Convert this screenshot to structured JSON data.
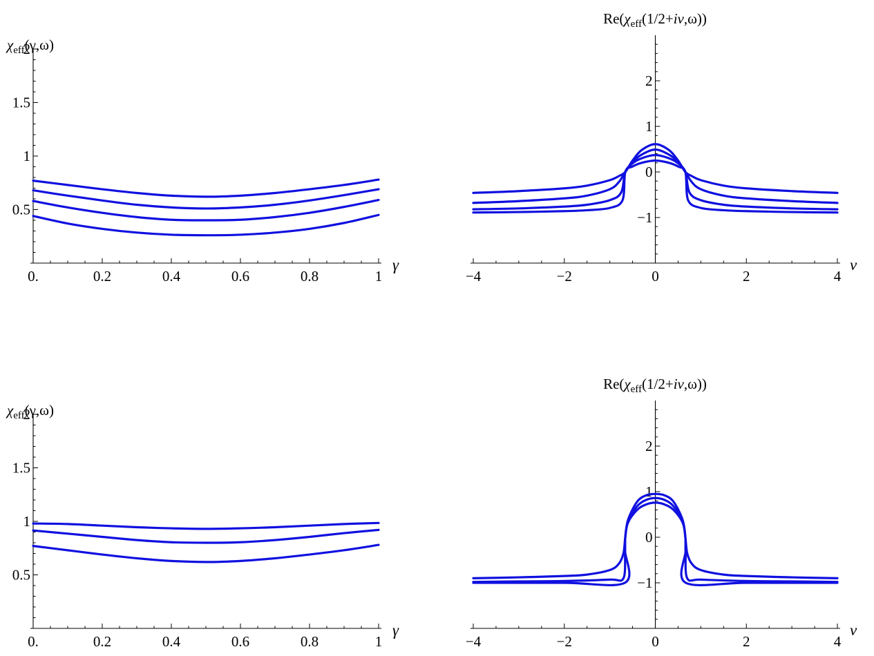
{
  "chart_data": [
    {
      "type": "line",
      "title": "",
      "ylabel_parts": [
        "χ",
        "eff",
        "(γ,ω)"
      ],
      "xlabel": "γ",
      "xlim": [
        0,
        1
      ],
      "ylim": [
        0,
        2
      ],
      "xticks": [
        {
          "v": 0,
          "label": "0."
        },
        {
          "v": 0.2,
          "label": "0.2"
        },
        {
          "v": 0.4,
          "label": "0.4"
        },
        {
          "v": 0.6,
          "label": "0.6"
        },
        {
          "v": 0.8,
          "label": "0.8"
        },
        {
          "v": 1,
          "label": "1"
        }
      ],
      "yticks": [
        {
          "v": 0.5,
          "label": "0.5"
        },
        {
          "v": 1,
          "label": "1"
        },
        {
          "v": 1.5,
          "label": "1.5"
        },
        {
          "v": 2,
          "label": "2"
        }
      ],
      "color": "#1010e0",
      "series": [
        {
          "x": [
            0,
            0.1,
            0.2,
            0.3,
            0.4,
            0.5,
            0.6,
            0.7,
            0.8,
            0.9,
            1
          ],
          "values": [
            0.77,
            0.73,
            0.69,
            0.655,
            0.63,
            0.62,
            0.63,
            0.655,
            0.69,
            0.73,
            0.78
          ]
        },
        {
          "x": [
            0,
            0.1,
            0.2,
            0.3,
            0.4,
            0.5,
            0.6,
            0.7,
            0.8,
            0.9,
            1
          ],
          "values": [
            0.68,
            0.63,
            0.585,
            0.545,
            0.52,
            0.51,
            0.52,
            0.545,
            0.585,
            0.635,
            0.69
          ]
        },
        {
          "x": [
            0,
            0.1,
            0.2,
            0.3,
            0.4,
            0.5,
            0.6,
            0.7,
            0.8,
            0.9,
            1
          ],
          "values": [
            0.58,
            0.52,
            0.47,
            0.43,
            0.405,
            0.4,
            0.405,
            0.43,
            0.47,
            0.525,
            0.59
          ]
        },
        {
          "x": [
            0,
            0.1,
            0.2,
            0.3,
            0.4,
            0.5,
            0.6,
            0.7,
            0.8,
            0.9,
            1
          ],
          "values": [
            0.44,
            0.37,
            0.32,
            0.285,
            0.265,
            0.26,
            0.265,
            0.285,
            0.32,
            0.375,
            0.45
          ]
        }
      ]
    },
    {
      "type": "line",
      "title_parts": [
        "Re(",
        "χ",
        "eff",
        "(1/2+",
        "iν",
        ",ω))"
      ],
      "xlabel": "ν",
      "xlim": [
        -4,
        4
      ],
      "ylim": [
        -2,
        3
      ],
      "xticks": [
        {
          "v": -4,
          "label": "−4"
        },
        {
          "v": -2,
          "label": "−2"
        },
        {
          "v": 0,
          "label": "0"
        },
        {
          "v": 2,
          "label": "2"
        },
        {
          "v": 4,
          "label": "4"
        }
      ],
      "yticks": [
        {
          "v": -1,
          "label": "−1"
        },
        {
          "v": 0,
          "label": "0"
        },
        {
          "v": 1,
          "label": "1"
        },
        {
          "v": 2,
          "label": "2"
        }
      ],
      "color": "#1010e0",
      "series": [
        {
          "x": [
            -4,
            -3,
            -2,
            -1.5,
            -1,
            -0.8,
            -0.66,
            -0.5,
            -0.3,
            0,
            0.3,
            0.5,
            0.66,
            0.8,
            1,
            1.5,
            2,
            3,
            4
          ],
          "values": [
            -0.46,
            -0.42,
            -0.36,
            -0.3,
            -0.18,
            -0.09,
            0,
            0.25,
            0.48,
            0.61,
            0.48,
            0.25,
            0,
            -0.09,
            -0.18,
            -0.3,
            -0.36,
            -0.42,
            -0.46
          ]
        },
        {
          "x": [
            -4,
            -3,
            -2,
            -1.5,
            -1,
            -0.8,
            -0.66,
            -0.5,
            -0.3,
            0,
            0.3,
            0.5,
            0.66,
            0.8,
            1,
            1.5,
            2,
            3,
            4
          ],
          "values": [
            -0.68,
            -0.64,
            -0.58,
            -0.52,
            -0.38,
            -0.22,
            0,
            0.22,
            0.38,
            0.49,
            0.38,
            0.22,
            0,
            -0.22,
            -0.38,
            -0.52,
            -0.58,
            -0.64,
            -0.68
          ]
        },
        {
          "x": [
            -4,
            -3,
            -2,
            -1.5,
            -1,
            -0.75,
            -0.66,
            -0.5,
            -0.3,
            0,
            0.3,
            0.5,
            0.66,
            0.75,
            1,
            1.5,
            2,
            3,
            4
          ],
          "values": [
            -0.82,
            -0.8,
            -0.76,
            -0.72,
            -0.62,
            -0.45,
            0,
            0.19,
            0.3,
            0.37,
            0.3,
            0.19,
            0,
            -0.45,
            -0.62,
            -0.72,
            -0.76,
            -0.8,
            -0.82
          ]
        },
        {
          "x": [
            -4,
            -3,
            -2,
            -1.5,
            -1,
            -0.72,
            -0.66,
            -0.5,
            -0.3,
            0,
            0.3,
            0.5,
            0.66,
            0.72,
            1,
            1.5,
            2,
            3,
            4
          ],
          "values": [
            -0.89,
            -0.88,
            -0.86,
            -0.84,
            -0.79,
            -0.62,
            0,
            0.12,
            0.2,
            0.25,
            0.2,
            0.12,
            0,
            -0.62,
            -0.79,
            -0.84,
            -0.86,
            -0.88,
            -0.89
          ]
        }
      ]
    },
    {
      "type": "line",
      "title": "",
      "ylabel_parts": [
        "χ",
        "eff",
        "(γ,ω)"
      ],
      "xlabel": "γ",
      "xlim": [
        0,
        1
      ],
      "ylim": [
        0,
        2
      ],
      "xticks": [
        {
          "v": 0,
          "label": "0."
        },
        {
          "v": 0.2,
          "label": "0.2"
        },
        {
          "v": 0.4,
          "label": "0.4"
        },
        {
          "v": 0.6,
          "label": "0.6"
        },
        {
          "v": 0.8,
          "label": "0.8"
        },
        {
          "v": 1,
          "label": "1"
        }
      ],
      "yticks": [
        {
          "v": 0.5,
          "label": "0.5"
        },
        {
          "v": 1,
          "label": "1"
        },
        {
          "v": 1.5,
          "label": "1.5"
        },
        {
          "v": 2,
          "label": "2"
        }
      ],
      "color": "#1010e0",
      "series": [
        {
          "x": [
            0,
            0.1,
            0.2,
            0.3,
            0.4,
            0.5,
            0.6,
            0.7,
            0.8,
            0.9,
            1
          ],
          "values": [
            0.98,
            0.975,
            0.96,
            0.945,
            0.935,
            0.93,
            0.935,
            0.945,
            0.96,
            0.975,
            0.985
          ]
        },
        {
          "x": [
            0,
            0.1,
            0.2,
            0.3,
            0.4,
            0.5,
            0.6,
            0.7,
            0.8,
            0.9,
            1
          ],
          "values": [
            0.915,
            0.885,
            0.855,
            0.825,
            0.805,
            0.8,
            0.805,
            0.825,
            0.855,
            0.89,
            0.92
          ]
        },
        {
          "x": [
            0,
            0.1,
            0.2,
            0.3,
            0.4,
            0.5,
            0.6,
            0.7,
            0.8,
            0.9,
            1
          ],
          "values": [
            0.77,
            0.73,
            0.69,
            0.655,
            0.63,
            0.62,
            0.63,
            0.655,
            0.69,
            0.73,
            0.78
          ]
        }
      ]
    },
    {
      "type": "line",
      "title_parts": [
        "Re(",
        "χ",
        "eff",
        "(1/2+",
        "iν",
        ",ω))"
      ],
      "xlabel": "ν",
      "xlim": [
        -4,
        4
      ],
      "ylim": [
        -2,
        3
      ],
      "xticks": [
        {
          "v": -4,
          "label": "−4"
        },
        {
          "v": -2,
          "label": "−2"
        },
        {
          "v": 0,
          "label": "0"
        },
        {
          "v": 2,
          "label": "2"
        },
        {
          "v": 4,
          "label": "4"
        }
      ],
      "yticks": [
        {
          "v": -1,
          "label": "−1"
        },
        {
          "v": 0,
          "label": "0"
        },
        {
          "v": 1,
          "label": "1"
        },
        {
          "v": 2,
          "label": "2"
        }
      ],
      "color": "#1010e0",
      "series": [
        {
          "x": [
            -4,
            -3,
            -2,
            -1.5,
            -1,
            -0.8,
            -0.7,
            -0.66,
            -0.6,
            -0.4,
            -0.2,
            0,
            0.2,
            0.4,
            0.6,
            0.66,
            0.7,
            0.8,
            1,
            1.5,
            2,
            3,
            4
          ],
          "values": [
            -0.9,
            -0.88,
            -0.85,
            -0.82,
            -0.72,
            -0.58,
            -0.35,
            0,
            0.38,
            0.78,
            0.92,
            0.95,
            0.92,
            0.78,
            0.38,
            0,
            -0.35,
            -0.58,
            -0.72,
            -0.82,
            -0.85,
            -0.88,
            -0.9
          ]
        },
        {
          "x": [
            -4,
            -3,
            -2,
            -1,
            -0.7,
            -0.665,
            -0.66,
            -0.6,
            -0.4,
            -0.2,
            0,
            0.2,
            0.4,
            0.6,
            0.66,
            0.665,
            0.7,
            1,
            2,
            3,
            4
          ],
          "values": [
            -0.98,
            -0.97,
            -0.96,
            -0.93,
            -0.9,
            -0.3,
            0,
            0.35,
            0.68,
            0.82,
            0.86,
            0.82,
            0.68,
            0.35,
            0,
            -0.3,
            -0.9,
            -0.93,
            -0.96,
            -0.97,
            -0.98
          ]
        },
        {
          "x": [
            -4,
            -2,
            -0.67,
            -0.665,
            -0.66,
            -0.6,
            -0.4,
            -0.2,
            0,
            0.2,
            0.4,
            0.6,
            0.66,
            0.665,
            0.67,
            2,
            4
          ],
          "values": [
            -1,
            -1,
            -1,
            -0.3,
            0,
            0.32,
            0.6,
            0.72,
            0.76,
            0.72,
            0.6,
            0.32,
            0,
            -0.3,
            -1,
            -1,
            -1
          ]
        }
      ]
    }
  ]
}
